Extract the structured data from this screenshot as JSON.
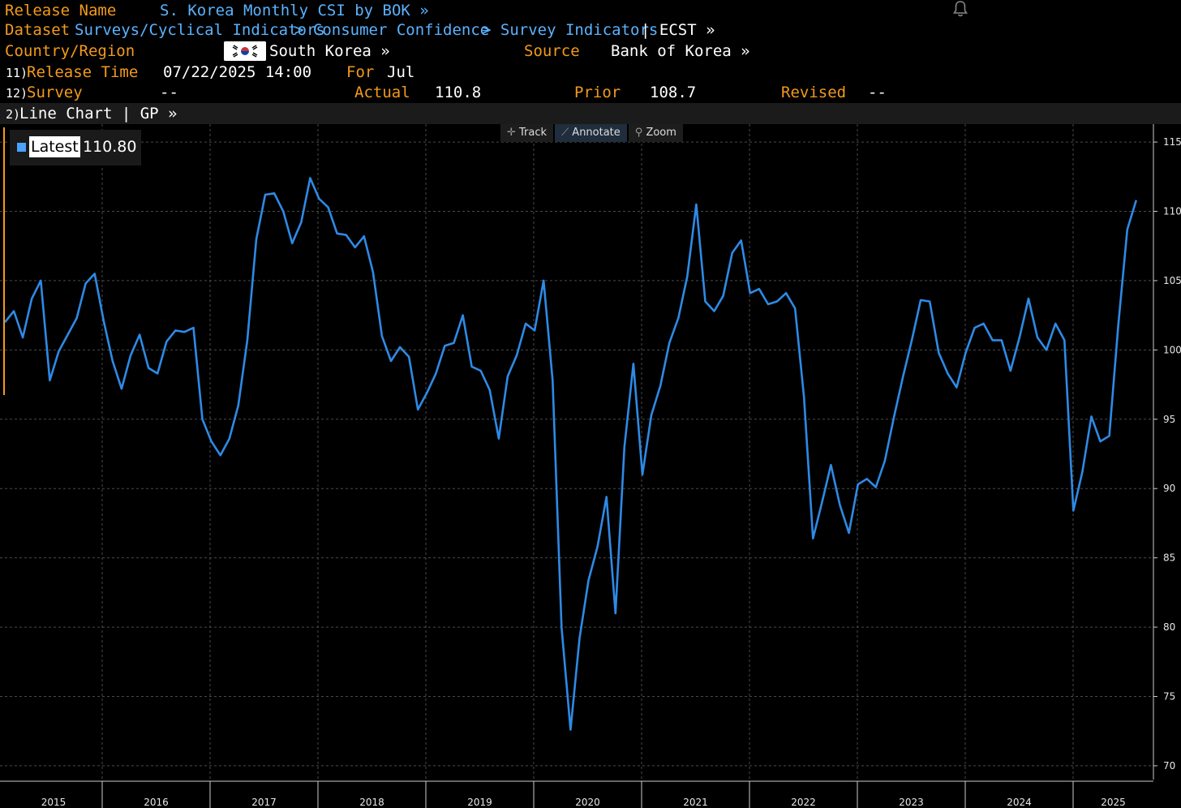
{
  "header": {
    "release_name_label": "Release Name",
    "release_name_value": "S. Korea Monthly CSI by BOK »",
    "dataset_label": "Dataset",
    "dataset_path": [
      "Surveys/Cyclical Indicators",
      "> Consumer Confidence",
      "> Survey Indicators",
      "| ECST »"
    ],
    "country_label": "Country/Region",
    "country_value": "South Korea »",
    "source_label": "Source",
    "source_value": "Bank of Korea »",
    "release_time_num": "11)",
    "release_time_label": "Release Time",
    "release_time_value": "07/22/2025 14:00",
    "for_label": "For",
    "for_value": "Jul",
    "survey_num": "12)",
    "survey_label": "Survey",
    "survey_value": "--",
    "actual_label": "Actual",
    "actual_value": "110.8",
    "prior_label": "Prior",
    "prior_value": "108.7",
    "revised_label": "Revised",
    "revised_value": "--"
  },
  "chart_bar": {
    "num": "2)",
    "text": "Line Chart | GP »"
  },
  "toolbar": {
    "track": "Track",
    "annotate": "Annotate",
    "zoom": "Zoom"
  },
  "legend": {
    "name": "Latest",
    "value": "110.80"
  },
  "colors": {
    "line": "#2e8ae6",
    "label": "#f39a1c",
    "link": "#5ab2ff"
  },
  "chart_data": {
    "type": "line",
    "ylim": [
      69,
      116
    ],
    "yticks": [
      "115",
      "110",
      "105",
      "100",
      "95",
      "90",
      "85",
      "80",
      "75",
      "70"
    ],
    "xtick_labels": [
      "2015",
      "2016",
      "2017",
      "2018",
      "2019",
      "2020",
      "2021",
      "2022",
      "2023",
      "2024",
      "2025"
    ],
    "x_start_year": 2015,
    "series": [
      {
        "values": [
          102.0,
          102.8,
          100.9,
          103.7,
          105.0,
          97.8,
          99.9,
          101.1,
          102.3,
          104.8,
          105.5,
          102.1,
          99.2,
          97.2,
          99.6,
          101.1,
          98.7,
          98.3,
          100.6,
          101.4,
          101.3,
          101.6,
          95.0,
          93.4,
          92.4,
          93.6,
          96.0,
          100.7,
          108.0,
          111.2,
          111.3,
          110.0,
          107.7,
          109.2,
          112.4,
          110.9,
          110.3,
          108.4,
          108.3,
          107.4,
          108.2,
          105.6,
          101.0,
          99.2,
          100.2,
          99.5,
          95.7,
          96.9,
          98.3,
          100.3,
          100.5,
          102.5,
          98.8,
          98.5,
          97.1,
          93.6,
          98.1,
          99.6,
          101.9,
          101.4,
          105.0,
          97.8,
          80.0,
          72.6,
          79.2,
          83.4,
          85.8,
          89.4,
          81.0,
          93.0,
          99.0,
          91.0,
          95.3,
          97.4,
          100.5,
          102.3,
          105.3,
          110.5,
          103.5,
          102.8,
          103.9,
          107.0,
          107.9,
          104.1,
          104.4,
          103.3,
          103.5,
          104.1,
          103.0,
          96.6,
          86.4,
          89.0,
          91.7,
          88.8,
          86.8,
          90.3,
          90.7,
          90.1,
          92.0,
          95.1,
          98.0,
          100.7,
          103.6,
          103.5,
          99.8,
          98.3,
          97.3,
          99.8,
          101.6,
          101.9,
          100.7,
          100.7,
          98.5,
          100.9,
          103.7,
          100.9,
          100.0,
          101.9,
          100.7,
          88.4,
          91.2,
          95.2,
          93.4,
          93.8,
          101.8,
          108.7,
          110.8
        ]
      }
    ]
  }
}
